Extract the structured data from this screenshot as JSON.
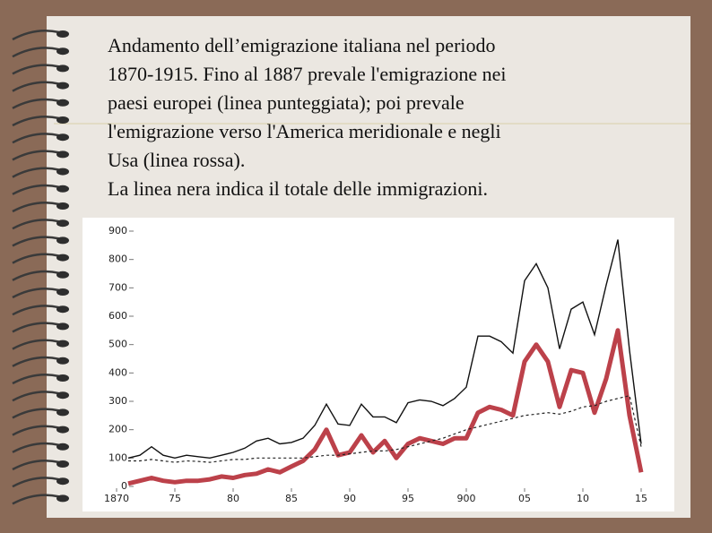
{
  "caption": [
    "Andamento dell’emigrazione italiana nel periodo",
    "1870-1915. Fino al 1887 prevale l'emigrazione nei",
    "paesi europei (linea punteggiata); poi prevale",
    "l'emigrazione verso l'America meridionale e negli",
    "Usa (linea rossa).",
    "La linea nera indica il totale delle immigrazioni."
  ],
  "chart_data": {
    "type": "line",
    "x": [
      1870,
      1871,
      1872,
      1873,
      1874,
      1875,
      1876,
      1877,
      1878,
      1879,
      1880,
      1881,
      1882,
      1883,
      1884,
      1885,
      1886,
      1887,
      1888,
      1889,
      1890,
      1891,
      1892,
      1893,
      1894,
      1895,
      1896,
      1897,
      1898,
      1899,
      1900,
      1901,
      1902,
      1903,
      1904,
      1905,
      1906,
      1907,
      1908,
      1909,
      1910,
      1911,
      1912,
      1913,
      1914,
      1915
    ],
    "xlim": [
      1870,
      1915
    ],
    "xticks": [
      {
        "value": 1870,
        "label": "1870"
      },
      {
        "value": 1875,
        "label": "75"
      },
      {
        "value": 1880,
        "label": "80"
      },
      {
        "value": 1885,
        "label": "85"
      },
      {
        "value": 1890,
        "label": "90"
      },
      {
        "value": 1895,
        "label": "95"
      },
      {
        "value": 1900,
        "label": "900"
      },
      {
        "value": 1905,
        "label": "05"
      },
      {
        "value": 1910,
        "label": "10"
      },
      {
        "value": 1915,
        "label": "15"
      }
    ],
    "ylim": [
      0,
      900
    ],
    "yticks": [
      0,
      100,
      200,
      300,
      400,
      500,
      600,
      700,
      800,
      900
    ],
    "series": [
      {
        "color": "#111111",
        "style": "solid",
        "values": [
          null,
          100,
          110,
          140,
          110,
          100,
          110,
          105,
          100,
          110,
          120,
          135,
          160,
          170,
          150,
          155,
          170,
          215,
          290,
          220,
          215,
          290,
          245,
          245,
          225,
          295,
          305,
          300,
          285,
          310,
          350,
          530,
          530,
          510,
          470,
          725,
          785,
          700,
          485,
          625,
          650,
          535,
          710,
          870,
          480,
          150
        ]
      },
      {
        "color": "#b0202a",
        "style": "thick",
        "values": [
          null,
          10,
          20,
          30,
          20,
          15,
          20,
          20,
          25,
          35,
          30,
          40,
          45,
          60,
          50,
          70,
          90,
          130,
          200,
          110,
          120,
          180,
          120,
          160,
          100,
          150,
          170,
          160,
          150,
          170,
          170,
          260,
          280,
          270,
          250,
          440,
          500,
          440,
          280,
          410,
          400,
          260,
          380,
          550,
          250,
          50
        ]
      },
      {
        "color": "#222222",
        "style": "dotted",
        "values": [
          null,
          90,
          90,
          95,
          90,
          85,
          90,
          88,
          85,
          90,
          95,
          95,
          100,
          100,
          100,
          100,
          100,
          105,
          110,
          110,
          115,
          120,
          125,
          125,
          130,
          140,
          150,
          160,
          170,
          185,
          200,
          210,
          220,
          230,
          240,
          250,
          255,
          260,
          255,
          265,
          280,
          285,
          300,
          310,
          320,
          140
        ]
      }
    ]
  }
}
